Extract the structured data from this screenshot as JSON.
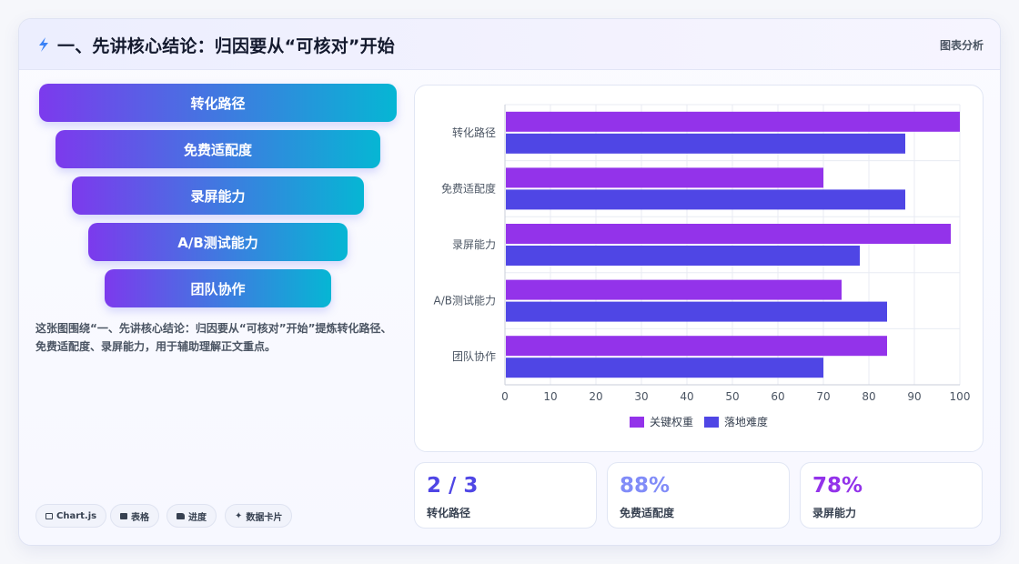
{
  "header": {
    "title": "一、先讲核心结论：归因要从“可核对”开始",
    "tag": "图表分析"
  },
  "funnel": [
    "转化路径",
    "免费适配度",
    "录屏能力",
    "A/B测试能力",
    "团队协作"
  ],
  "description": "这张图围绕“一、先讲核心结论：归因要从“可核对”开始”提炼转化路径、免费适配度、录屏能力，用于辅助理解正文重点。",
  "chips": [
    "Chart.js",
    "表格",
    "进度",
    "数据卡片"
  ],
  "stats": [
    {
      "value": "2 / 3",
      "label": "转化路径",
      "color": "#4f46e5"
    },
    {
      "value": "88%",
      "label": "免费适配度",
      "color": "#818cf8"
    },
    {
      "value": "78%",
      "label": "录屏能力",
      "color": "#9333ea"
    }
  ],
  "chart_data": {
    "type": "bar",
    "orientation": "horizontal",
    "categories": [
      "转化路径",
      "免费适配度",
      "录屏能力",
      "A/B测试能力",
      "团队协作"
    ],
    "series": [
      {
        "name": "关键权重",
        "values": [
          100,
          70,
          98,
          74,
          84
        ],
        "color": "#9333ea"
      },
      {
        "name": "落地难度",
        "values": [
          88,
          88,
          78,
          84,
          70
        ],
        "color": "#4f46e5"
      }
    ],
    "xlim": [
      0,
      100
    ],
    "xticks": [
      0,
      10,
      20,
      30,
      40,
      50,
      60,
      70,
      80,
      90,
      100
    ],
    "grid": true,
    "legend_position": "bottom"
  }
}
